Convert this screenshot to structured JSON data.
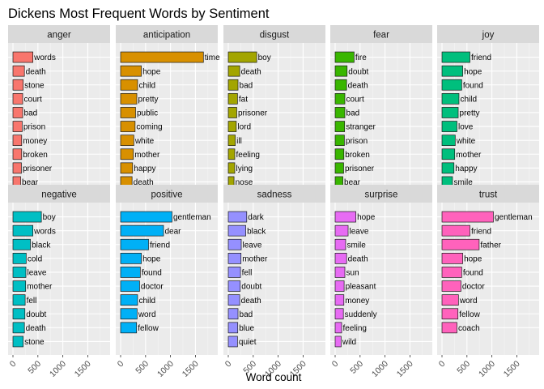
{
  "chart_data": {
    "type": "bar",
    "orientation": "horizontal",
    "title": "Dickens Most Frequent Words by Sentiment",
    "xlabel": "Word count",
    "ylabel": "",
    "xlim": [
      0,
      1850
    ],
    "xticks": [
      0,
      500,
      1000,
      1500
    ],
    "xtick_labels": [
      "0",
      "500",
      "1000",
      "1500"
    ],
    "panel_background": "#ebebeb",
    "strip_background": "#d9d9d9",
    "grid": true,
    "legend": "none",
    "facets": [
      {
        "name": "anger",
        "color": "#F8766D",
        "words": [
          "words",
          "death",
          "stone",
          "court",
          "bad",
          "prison",
          "money",
          "broken",
          "prisoner",
          "bear"
        ],
        "values": [
          400,
          230,
          205,
          195,
          195,
          185,
          175,
          175,
          170,
          155
        ]
      },
      {
        "name": "anticipation",
        "color": "#D89000",
        "words": [
          "time",
          "hope",
          "child",
          "pretty",
          "public",
          "coming",
          "white",
          "mother",
          "happy",
          "death"
        ],
        "values": [
          1660,
          415,
          340,
          325,
          300,
          290,
          265,
          255,
          240,
          230
        ]
      },
      {
        "name": "disgust",
        "color": "#A3A500",
        "words": [
          "boy",
          "death",
          "bad",
          "fat",
          "prisoner",
          "lord",
          "ill",
          "feeling",
          "lying",
          "nose"
        ],
        "values": [
          570,
          230,
          195,
          185,
          170,
          160,
          140,
          130,
          130,
          115
        ]
      },
      {
        "name": "fear",
        "color": "#39B600",
        "words": [
          "fire",
          "doubt",
          "death",
          "court",
          "bad",
          "stranger",
          "prison",
          "broken",
          "prisoner",
          "bear"
        ],
        "values": [
          380,
          240,
          230,
          195,
          195,
          190,
          185,
          175,
          170,
          155
        ]
      },
      {
        "name": "joy",
        "color": "#00BF7D",
        "words": [
          "friend",
          "hope",
          "found",
          "child",
          "pretty",
          "love",
          "white",
          "mother",
          "happy",
          "smile"
        ],
        "values": [
          560,
          415,
          395,
          340,
          325,
          300,
          265,
          255,
          240,
          210
        ]
      },
      {
        "name": "negative",
        "color": "#00BFC4",
        "words": [
          "boy",
          "words",
          "black",
          "cold",
          "leave",
          "mother",
          "fell",
          "doubt",
          "death",
          "stone"
        ],
        "values": [
          570,
          400,
          350,
          265,
          260,
          255,
          245,
          240,
          230,
          205
        ]
      },
      {
        "name": "positive",
        "color": "#00B0F6",
        "words": [
          "gentleman",
          "dear",
          "friend",
          "hope",
          "found",
          "doctor",
          "child",
          "word",
          "fellow"
        ],
        "values": [
          1030,
          860,
          560,
          415,
          395,
          380,
          340,
          330,
          320
        ]
      },
      {
        "name": "sadness",
        "color": "#9590FF",
        "words": [
          "dark",
          "black",
          "leave",
          "mother",
          "fell",
          "doubt",
          "death",
          "bad",
          "blue",
          "quiet"
        ],
        "values": [
          370,
          350,
          260,
          255,
          245,
          240,
          230,
          195,
          190,
          185
        ]
      },
      {
        "name": "surprise",
        "color": "#E76BF3",
        "words": [
          "hope",
          "leave",
          "smile",
          "death",
          "sun",
          "pleasant",
          "money",
          "suddenly",
          "feeling",
          "wild"
        ],
        "values": [
          415,
          260,
          210,
          230,
          195,
          180,
          175,
          165,
          130,
          120
        ]
      },
      {
        "name": "trust",
        "color": "#FF62BC",
        "words": [
          "gentleman",
          "friend",
          "father",
          "hope",
          "found",
          "doctor",
          "word",
          "fellow",
          "coach"
        ],
        "values": [
          1030,
          560,
          745,
          415,
          395,
          380,
          330,
          320,
          300
        ]
      }
    ]
  }
}
